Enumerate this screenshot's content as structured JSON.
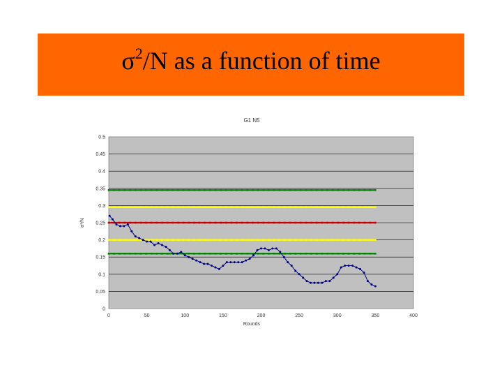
{
  "slide": {
    "title_symbol": "σ",
    "title_sup": "2",
    "title_rest": "/N as a function of time"
  },
  "chart_data": {
    "type": "line",
    "title": "G1 N5",
    "xlabel": "Rounds",
    "ylabel": "σ²/N",
    "xlim": [
      0,
      400
    ],
    "ylim": [
      0,
      0.5
    ],
    "x_ticks": [
      "0",
      "50",
      "100",
      "150",
      "200",
      "250",
      "300",
      "350",
      "400"
    ],
    "y_ticks": [
      "0",
      "0.05",
      "0.1",
      "0.15",
      "0.2",
      "0.25",
      "0.3",
      "0.35",
      "0.4",
      "0.45",
      "0.5"
    ],
    "grid": true,
    "background": "#c0c0c0",
    "reference_lines": [
      {
        "y": 0.345,
        "color": "#008000"
      },
      {
        "y": 0.295,
        "color": "#ffff00"
      },
      {
        "y": 0.25,
        "color": "#cc0000"
      },
      {
        "y": 0.2,
        "color": "#ffff00"
      },
      {
        "y": 0.16,
        "color": "#008000"
      }
    ],
    "series": [
      {
        "color": "#000080",
        "points": [
          [
            1,
            0.27
          ],
          [
            5,
            0.26
          ],
          [
            10,
            0.245
          ],
          [
            15,
            0.24
          ],
          [
            20,
            0.24
          ],
          [
            25,
            0.245
          ],
          [
            30,
            0.225
          ],
          [
            35,
            0.21
          ],
          [
            40,
            0.205
          ],
          [
            45,
            0.2
          ],
          [
            50,
            0.195
          ],
          [
            55,
            0.195
          ],
          [
            60,
            0.185
          ],
          [
            65,
            0.19
          ],
          [
            70,
            0.185
          ],
          [
            75,
            0.18
          ],
          [
            80,
            0.17
          ],
          [
            85,
            0.16
          ],
          [
            90,
            0.16
          ],
          [
            95,
            0.165
          ],
          [
            100,
            0.155
          ],
          [
            105,
            0.15
          ],
          [
            110,
            0.145
          ],
          [
            115,
            0.14
          ],
          [
            120,
            0.135
          ],
          [
            125,
            0.13
          ],
          [
            130,
            0.13
          ],
          [
            135,
            0.125
          ],
          [
            140,
            0.12
          ],
          [
            145,
            0.115
          ],
          [
            150,
            0.125
          ],
          [
            155,
            0.135
          ],
          [
            160,
            0.135
          ],
          [
            165,
            0.135
          ],
          [
            170,
            0.135
          ],
          [
            175,
            0.135
          ],
          [
            180,
            0.14
          ],
          [
            185,
            0.145
          ],
          [
            190,
            0.155
          ],
          [
            195,
            0.17
          ],
          [
            200,
            0.175
          ],
          [
            205,
            0.175
          ],
          [
            210,
            0.17
          ],
          [
            215,
            0.175
          ],
          [
            220,
            0.175
          ],
          [
            225,
            0.165
          ],
          [
            230,
            0.15
          ],
          [
            235,
            0.135
          ],
          [
            240,
            0.125
          ],
          [
            245,
            0.11
          ],
          [
            250,
            0.1
          ],
          [
            255,
            0.09
          ],
          [
            260,
            0.08
          ],
          [
            265,
            0.075
          ],
          [
            270,
            0.075
          ],
          [
            275,
            0.075
          ],
          [
            280,
            0.075
          ],
          [
            285,
            0.08
          ],
          [
            290,
            0.08
          ],
          [
            295,
            0.09
          ],
          [
            300,
            0.1
          ],
          [
            305,
            0.12
          ],
          [
            310,
            0.125
          ],
          [
            315,
            0.125
          ],
          [
            320,
            0.125
          ],
          [
            325,
            0.12
          ],
          [
            330,
            0.115
          ],
          [
            335,
            0.105
          ],
          [
            340,
            0.08
          ],
          [
            345,
            0.07
          ],
          [
            350,
            0.065
          ]
        ]
      }
    ]
  }
}
